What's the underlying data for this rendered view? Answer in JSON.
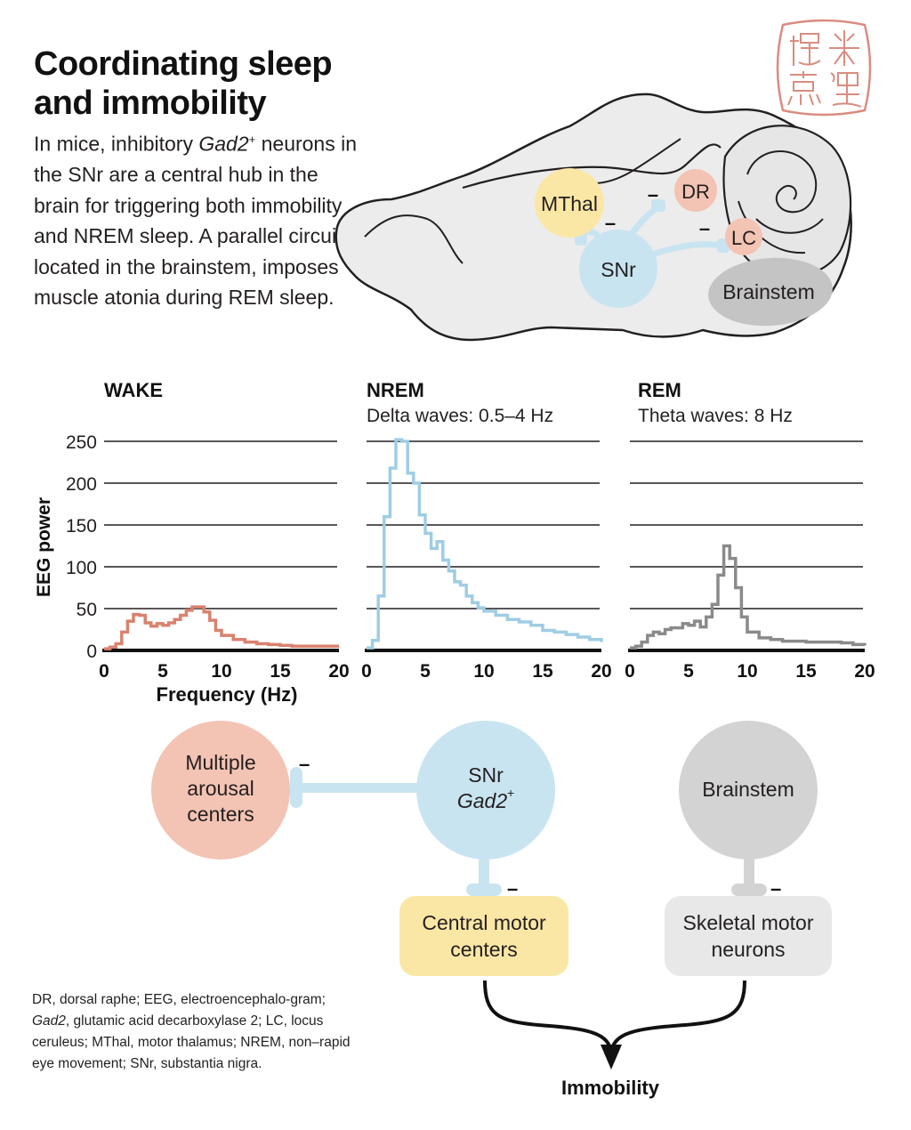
{
  "title": {
    "line1": "Coordinating sleep",
    "line2": "and immobility"
  },
  "intro": {
    "p1": "In mice, inhibitory ",
    "gene": "Gad2",
    "sup": "+",
    "p2": " neurons in the SNr are a central hub in the brain for triggering both immobility and NREM sleep. A parallel circuit, located in the brainstem, imposes muscle atonia during REM sleep."
  },
  "brain": {
    "mthal": "MThal",
    "snr": "SNr",
    "dr": "DR",
    "lc": "LC",
    "brainstem": "Brainstem",
    "minus": "–"
  },
  "stamp": {
    "text": "米 ¦ 摘 ¦ 隐 ¦ 斋"
  },
  "colors": {
    "wake": "#d9826f",
    "nrem": "#9fcde3",
    "rem": "#8a8a8a",
    "pink_fill": "#f3c3b3",
    "blue_fill": "#c9e4f1",
    "yellow_fill": "#fbe7a5",
    "gray_fill": "#d3d3d3",
    "light_gray_fill": "#e8e8e8",
    "brain_fill": "#ececec",
    "stamp": "#d98c80"
  },
  "chart_data": [
    {
      "type": "line",
      "title": "WAKE",
      "subtitle": "",
      "xlabel": "Frequency (Hz)",
      "ylabel": "EEG power",
      "xlim": [
        0,
        20
      ],
      "ylim": [
        0,
        250
      ],
      "xticks": [
        "0",
        "5",
        "10",
        "15",
        "20"
      ],
      "yticks": [
        "0",
        "50",
        "100",
        "150",
        "200",
        "250"
      ],
      "grid": true,
      "series": [
        {
          "name": "WAKE",
          "x": [
            0,
            0.5,
            1,
            1.5,
            2,
            2.5,
            3,
            3.5,
            4,
            4.5,
            5,
            5.5,
            6,
            6.5,
            7,
            7.5,
            8,
            8.5,
            9,
            9.5,
            10,
            11,
            12,
            13,
            14,
            15,
            16,
            17,
            18,
            19,
            20
          ],
          "y": [
            2,
            4,
            8,
            22,
            35,
            43,
            42,
            33,
            29,
            32,
            30,
            33,
            37,
            42,
            48,
            52,
            52,
            46,
            36,
            24,
            18,
            13,
            10,
            8,
            7,
            6,
            5,
            5,
            5,
            5,
            5
          ]
        }
      ]
    },
    {
      "type": "line",
      "title": "NREM",
      "subtitle": "Delta waves: 0.5–4 Hz",
      "xlabel": "",
      "ylabel": "",
      "xlim": [
        0,
        20
      ],
      "ylim": [
        0,
        250
      ],
      "xticks": [
        "0",
        "5",
        "10",
        "15",
        "20"
      ],
      "yticks": [],
      "grid": true,
      "series": [
        {
          "name": "NREM",
          "x": [
            0,
            0.5,
            1,
            1.5,
            2,
            2.5,
            3,
            3.5,
            4,
            4.5,
            5,
            5.5,
            6,
            6.5,
            7,
            7.5,
            8,
            8.5,
            9,
            9.5,
            10,
            11,
            12,
            13,
            14,
            15,
            16,
            17,
            18,
            19,
            20
          ],
          "y": [
            3,
            12,
            65,
            160,
            218,
            252,
            250,
            212,
            200,
            162,
            140,
            122,
            130,
            108,
            95,
            82,
            78,
            65,
            57,
            51,
            47,
            42,
            37,
            34,
            30,
            24,
            22,
            19,
            16,
            13,
            10
          ]
        }
      ]
    },
    {
      "type": "line",
      "title": "REM",
      "subtitle": "Theta waves: 8 Hz",
      "xlabel": "",
      "ylabel": "",
      "xlim": [
        0,
        20
      ],
      "ylim": [
        0,
        250
      ],
      "xticks": [
        "0",
        "5",
        "10",
        "15",
        "20"
      ],
      "yticks": [],
      "grid": true,
      "series": [
        {
          "name": "REM",
          "x": [
            0,
            0.5,
            1,
            1.5,
            2,
            2.5,
            3,
            3.5,
            4,
            4.5,
            5,
            5.5,
            6,
            6.5,
            7,
            7.5,
            8,
            8.5,
            9,
            9.5,
            10,
            11,
            12,
            13,
            14,
            15,
            16,
            17,
            18,
            19,
            20
          ],
          "y": [
            3,
            5,
            10,
            18,
            22,
            20,
            25,
            27,
            27,
            32,
            30,
            35,
            28,
            40,
            55,
            90,
            125,
            110,
            75,
            40,
            22,
            15,
            13,
            11,
            11,
            10,
            10,
            10,
            9,
            7,
            6
          ]
        }
      ]
    }
  ],
  "circuit": {
    "arousal": [
      "Multiple",
      "arousal",
      "centers"
    ],
    "snr": [
      "SNr",
      "Gad2",
      "+"
    ],
    "brainstem": "Brainstem",
    "central_motor": [
      "Central motor",
      "centers"
    ],
    "skeletal_motor": [
      "Skeletal motor",
      "neurons"
    ],
    "immobility": "Immobility",
    "minus": "–"
  },
  "footnote": {
    "a": "DR, dorsal raphe; EEG, electroencephalo-gram; ",
    "gene": "Gad2",
    "b": ", glutamic acid decarboxylase 2; LC, locus ceruleus; MThal, motor thalamus; NREM,  non–rapid eye movement; SNr, substantia nigra."
  }
}
